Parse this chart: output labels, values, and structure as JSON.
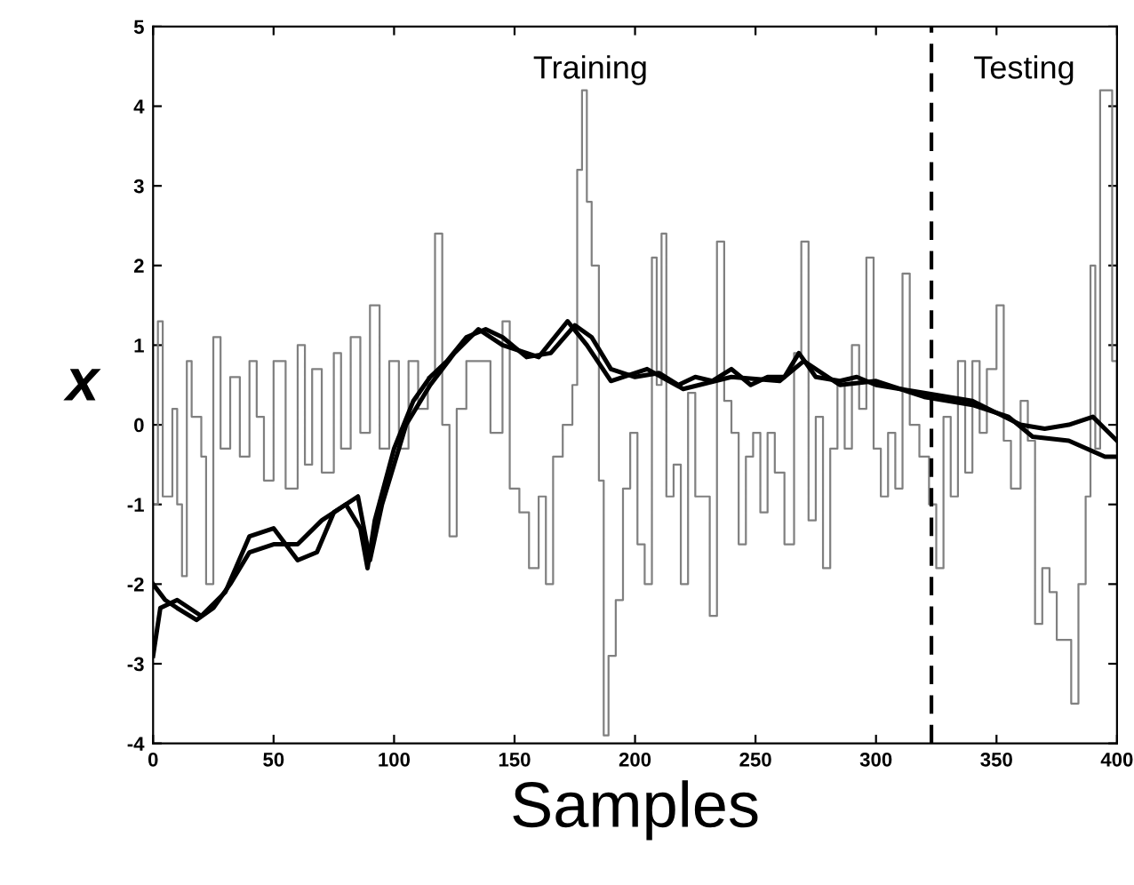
{
  "chart_data": {
    "type": "line",
    "xlabel": "Samples",
    "ylabel": "x",
    "xlim": [
      0,
      400
    ],
    "xticks": [
      0,
      50,
      100,
      150,
      200,
      250,
      300,
      350,
      400
    ],
    "ylim": [
      -4,
      5
    ],
    "yticks": [
      -4,
      -3,
      -2,
      -1,
      0,
      1,
      2,
      3,
      4,
      5
    ],
    "annotations": [
      "Training",
      "Testing"
    ],
    "ref_lines": [
      {
        "axis": "x",
        "value": 323,
        "color": "#000000",
        "line_style": "dashed"
      }
    ],
    "series": [
      {
        "type": "step",
        "color": "#808080",
        "x": [
          0,
          2,
          4,
          6,
          8,
          10,
          12,
          14,
          16,
          20,
          22,
          25,
          28,
          32,
          36,
          40,
          43,
          46,
          50,
          55,
          60,
          63,
          66,
          70,
          75,
          78,
          82,
          86,
          90,
          94,
          98,
          102,
          106,
          110,
          114,
          117,
          120,
          123,
          126,
          130,
          135,
          140,
          145,
          148,
          152,
          156,
          160,
          163,
          166,
          170,
          174,
          176,
          178,
          180,
          182,
          185,
          187,
          189,
          192,
          195,
          198,
          201,
          204,
          207,
          209,
          211,
          213,
          216,
          219,
          222,
          225,
          228,
          231,
          234,
          237,
          240,
          243,
          246,
          249,
          252,
          255,
          258,
          262,
          266,
          269,
          272,
          275,
          278,
          281,
          284,
          287,
          290,
          293,
          296,
          299,
          302,
          305,
          308,
          311,
          314,
          318,
          322,
          325,
          328,
          331,
          334,
          337,
          340,
          343,
          346,
          350,
          353,
          356,
          360,
          363,
          366,
          369,
          372,
          375,
          378,
          381,
          384,
          387,
          389,
          391,
          393,
          396,
          398,
          400
        ],
        "values": [
          -1.0,
          1.3,
          -0.9,
          -0.9,
          0.2,
          -1.0,
          -1.9,
          0.8,
          0.1,
          -0.4,
          -2.0,
          1.1,
          -0.3,
          0.6,
          -0.4,
          0.8,
          0.1,
          -0.7,
          0.8,
          -0.8,
          1.0,
          -0.5,
          0.7,
          -0.6,
          0.9,
          -0.3,
          1.1,
          -0.1,
          1.5,
          -0.3,
          0.8,
          -0.3,
          0.8,
          0.2,
          0.6,
          2.4,
          0.0,
          -1.4,
          0.2,
          0.8,
          0.8,
          -0.1,
          1.3,
          -0.8,
          -1.1,
          -1.8,
          -0.9,
          -2.0,
          -0.4,
          0.0,
          0.5,
          3.2,
          4.2,
          2.8,
          2.0,
          -0.7,
          -3.9,
          -2.9,
          -2.2,
          -0.8,
          -0.1,
          -1.5,
          -2.0,
          2.1,
          0.5,
          2.4,
          -0.9,
          -0.5,
          -2.0,
          0.4,
          -0.9,
          -0.9,
          -2.4,
          2.3,
          0.3,
          -0.1,
          -1.5,
          -0.4,
          -0.1,
          -1.1,
          -0.1,
          -0.6,
          -1.5,
          0.9,
          2.3,
          -1.2,
          0.1,
          -1.8,
          -0.3,
          0.5,
          -0.3,
          1.0,
          0.2,
          2.1,
          -0.3,
          -0.9,
          -0.1,
          -0.8,
          1.9,
          0.0,
          -0.4,
          -1.0,
          -1.8,
          0.1,
          -0.9,
          0.8,
          -0.6,
          0.8,
          -0.1,
          0.7,
          1.5,
          -0.2,
          -0.8,
          0.3,
          -0.2,
          -2.5,
          -1.8,
          -2.1,
          -2.7,
          -2.7,
          -3.5,
          -2.0,
          -0.9,
          2.0,
          -0.3,
          4.2,
          4.2,
          0.8,
          -0.1
        ]
      },
      {
        "color": "#000000",
        "x": [
          0,
          5,
          10,
          18,
          25,
          32,
          40,
          50,
          60,
          70,
          80,
          86,
          89,
          92,
          100,
          108,
          115,
          122,
          130,
          138,
          145,
          155,
          165,
          175,
          182,
          190,
          200,
          210,
          218,
          225,
          232,
          240,
          248,
          255,
          262,
          268,
          275,
          285,
          292,
          300,
          310,
          320,
          330,
          340,
          350,
          360,
          370,
          380,
          390,
          400
        ],
        "values": [
          -2.0,
          -2.2,
          -2.3,
          -2.45,
          -2.3,
          -2.0,
          -1.6,
          -1.5,
          -1.5,
          -1.2,
          -1.0,
          -1.3,
          -1.8,
          -1.2,
          -0.3,
          0.3,
          0.6,
          0.8,
          1.1,
          1.2,
          1.1,
          0.85,
          0.9,
          1.25,
          1.1,
          0.7,
          0.6,
          0.65,
          0.5,
          0.6,
          0.55,
          0.7,
          0.5,
          0.6,
          0.6,
          0.9,
          0.6,
          0.55,
          0.6,
          0.5,
          0.45,
          0.4,
          0.35,
          0.3,
          0.15,
          0.0,
          -0.05,
          0.0,
          0.1,
          -0.2
        ]
      },
      {
        "color": "#000000",
        "x": [
          0,
          3,
          10,
          20,
          30,
          40,
          50,
          60,
          68,
          75,
          85,
          90,
          95,
          105,
          115,
          125,
          135,
          145,
          160,
          172,
          180,
          190,
          205,
          220,
          240,
          260,
          270,
          285,
          300,
          320,
          340,
          355,
          365,
          380,
          395,
          400
        ],
        "values": [
          -2.9,
          -2.3,
          -2.2,
          -2.4,
          -2.1,
          -1.4,
          -1.3,
          -1.7,
          -1.6,
          -1.1,
          -0.9,
          -1.7,
          -1.0,
          0.0,
          0.5,
          0.9,
          1.2,
          1.0,
          0.85,
          1.3,
          1.0,
          0.55,
          0.7,
          0.45,
          0.6,
          0.55,
          0.8,
          0.5,
          0.55,
          0.35,
          0.25,
          0.1,
          -0.15,
          -0.2,
          -0.4,
          -0.4
        ]
      }
    ]
  }
}
